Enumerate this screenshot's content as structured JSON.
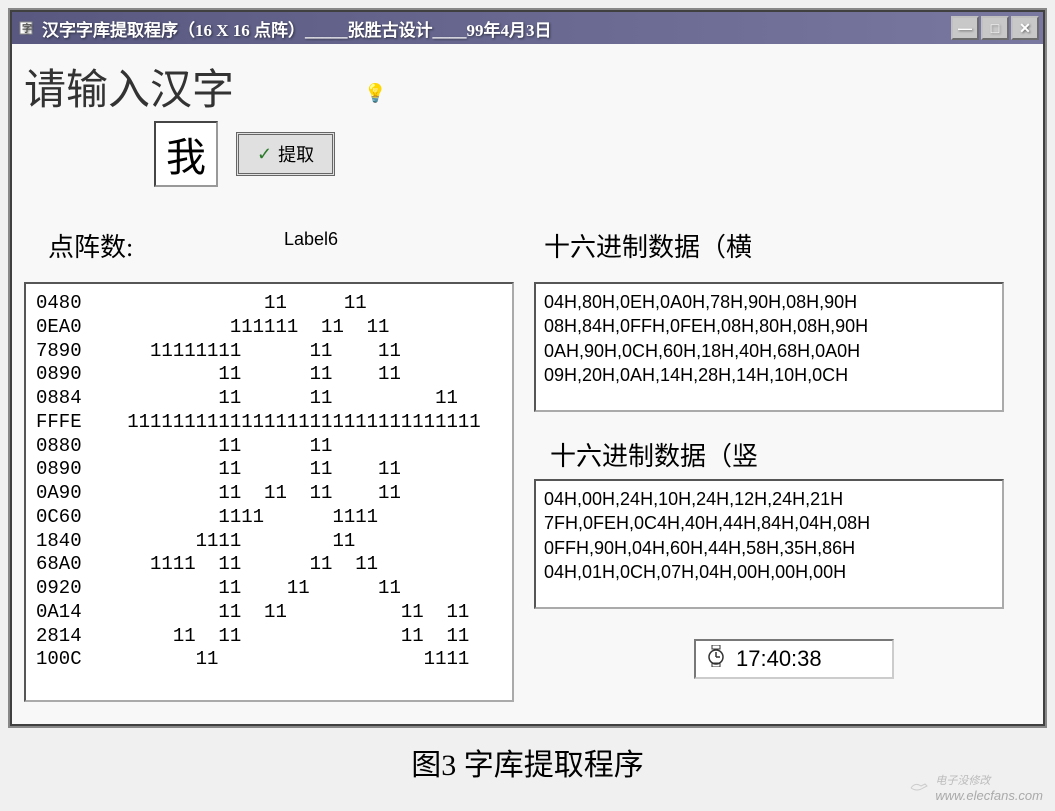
{
  "window": {
    "title": "汉字字库提取程序（16 X 16 点阵）_____张胜古设计____99年4月3日",
    "min_btn": "—",
    "max_btn": "□",
    "close_btn": "✕"
  },
  "prompt": "请输入汉字",
  "input_char": "我",
  "extract_btn_label": "提取",
  "label6": "Label6",
  "sections": {
    "bitmap_label": "点阵数:",
    "hex_h_label": "十六进制数据（横",
    "hex_v_label": "十六进制数据（竖"
  },
  "bitmap": {
    "rows": [
      {
        "code": "0480",
        "bits": "              11     11"
      },
      {
        "code": "0EA0",
        "bits": "           111111  11  11"
      },
      {
        "code": "7890",
        "bits": "    11111111      11    11"
      },
      {
        "code": "0890",
        "bits": "          11      11    11"
      },
      {
        "code": "0884",
        "bits": "          11      11         11"
      },
      {
        "code": "FFFE",
        "bits": "  1111111111111111111111111111111"
      },
      {
        "code": "0880",
        "bits": "          11      11"
      },
      {
        "code": "0890",
        "bits": "          11      11    11"
      },
      {
        "code": "0A90",
        "bits": "          11  11  11    11"
      },
      {
        "code": "0C60",
        "bits": "          1111      1111"
      },
      {
        "code": "1840",
        "bits": "        1111        11"
      },
      {
        "code": "68A0",
        "bits": "    1111  11      11  11"
      },
      {
        "code": "0920",
        "bits": "          11    11      11"
      },
      {
        "code": "0A14",
        "bits": "          11  11          11  11"
      },
      {
        "code": "2814",
        "bits": "      11  11              11  11"
      },
      {
        "code": "100C",
        "bits": "        11                  1111"
      }
    ]
  },
  "hex_horizontal": [
    "04H,80H,0EH,0A0H,78H,90H,08H,90H",
    "08H,84H,0FFH,0FEH,08H,80H,08H,90H",
    "0AH,90H,0CH,60H,18H,40H,68H,0A0H",
    "09H,20H,0AH,14H,28H,14H,10H,0CH"
  ],
  "hex_vertical": [
    "04H,00H,24H,10H,24H,12H,24H,21H",
    "7FH,0FEH,0C4H,40H,44H,84H,04H,08H",
    "0FFH,90H,04H,60H,44H,58H,35H,86H",
    "04H,01H,0CH,07H,04H,00H,00H,00H"
  ],
  "clock": "17:40:38",
  "caption": "图3 字库提取程序",
  "watermark": {
    "brand": "电子没修改",
    "url": "www.elecfans.com"
  },
  "colors": {
    "titlebar_start": "#585880",
    "titlebar_end": "#7878a0",
    "client_bg": "#f8f8f8",
    "panel_bg": "#ffffff",
    "check_color": "#2a7a2a"
  }
}
